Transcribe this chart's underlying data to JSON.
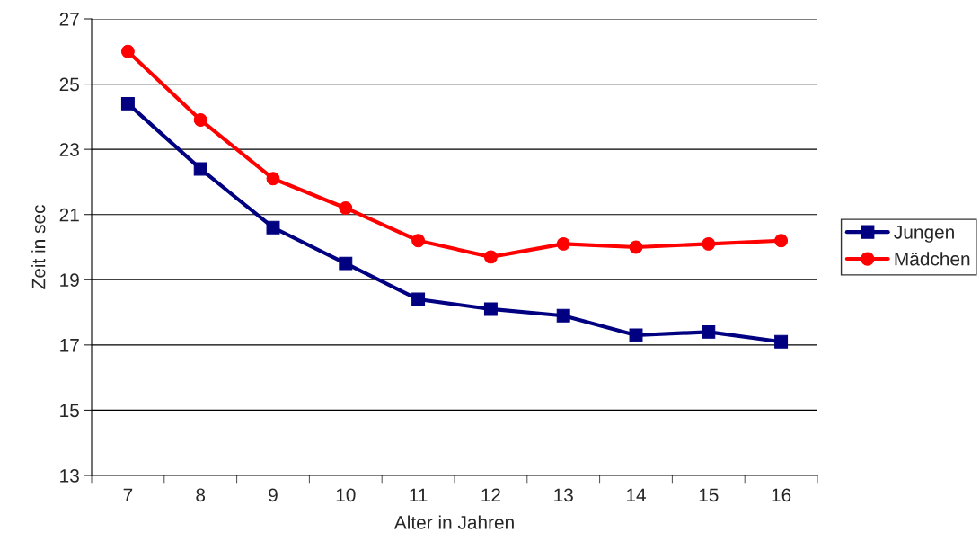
{
  "chart_data": {
    "type": "line",
    "xlabel": "Alter in Jahren",
    "ylabel": "Zeit in sec",
    "categories": [
      "7",
      "8",
      "9",
      "10",
      "11",
      "12",
      "13",
      "14",
      "15",
      "16"
    ],
    "series": [
      {
        "name": "Jungen",
        "color": "#000080",
        "marker": "square",
        "values": [
          24.4,
          22.4,
          20.6,
          19.5,
          18.4,
          18.1,
          17.9,
          17.3,
          17.4,
          17.1
        ]
      },
      {
        "name": "Mädchen",
        "color": "#ff0000",
        "marker": "circle",
        "values": [
          26.0,
          23.9,
          22.1,
          21.2,
          20.2,
          19.7,
          20.1,
          20.0,
          20.1,
          20.2
        ]
      }
    ],
    "ylim": [
      13,
      27
    ],
    "yticks": [
      13,
      15,
      17,
      19,
      21,
      23,
      25,
      27
    ],
    "grid": "y",
    "legend": "right",
    "line_style": "solid"
  }
}
